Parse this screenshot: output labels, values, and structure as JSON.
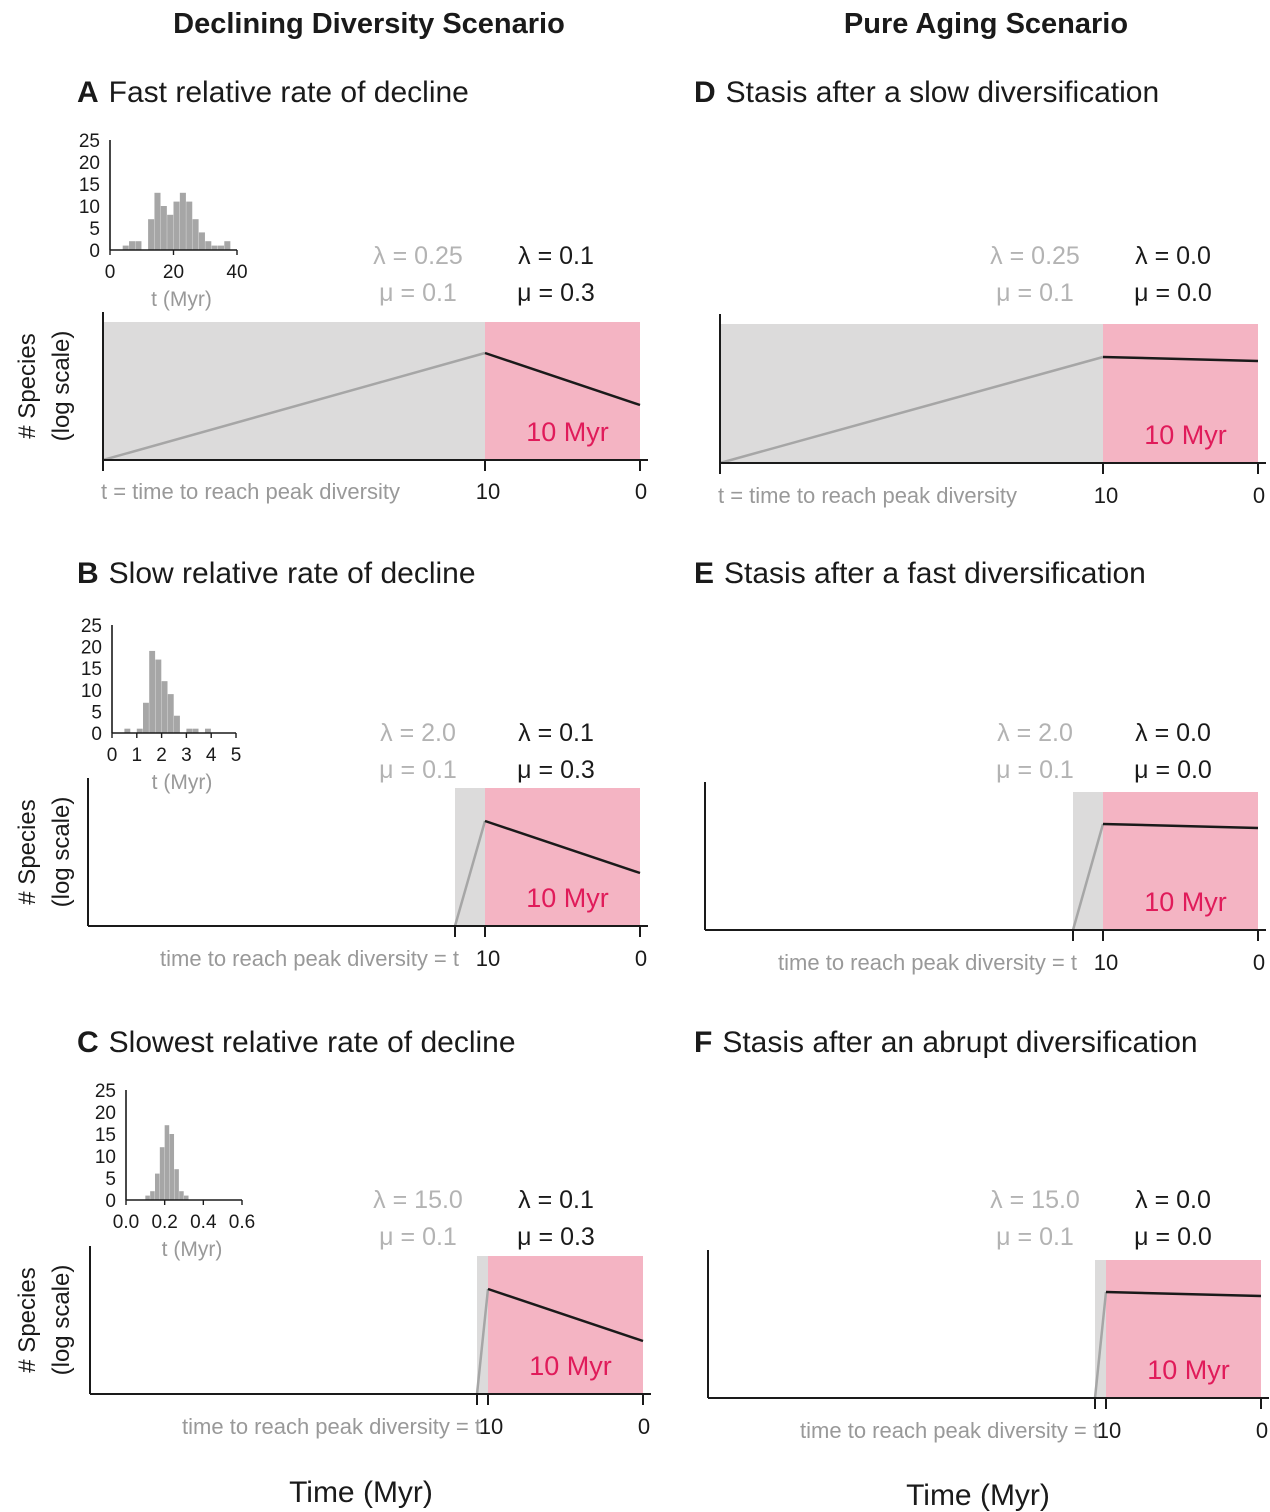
{
  "columns": {
    "left_title": "Declining Diversity Scenario",
    "right_title": "Pure Aging Scenario"
  },
  "colors": {
    "grey_region": "#dcdbdb",
    "pink_region": "#f4b4c3",
    "grey_line": "#a6a6a6",
    "black_line": "#1a1a1a",
    "myr_label": "#e01b5a",
    "hist_bars": "#a6a6a6"
  },
  "y_axis_label": {
    "line1": "# Species",
    "line2": "(log scale)"
  },
  "x_axis_label": "Time (Myr)",
  "pink_label": "10 Myr",
  "tick_10": "10",
  "tick_0": "0",
  "panels": [
    {
      "letter": "A",
      "title": "Fast relative rate of decline",
      "grey_params": {
        "lambda": "λ = 0.25",
        "mu": "μ = 0.1"
      },
      "black_params": {
        "lambda": "λ = 0.1",
        "mu": "μ = 0.3"
      },
      "time_label": "t = time to reach peak diversity",
      "after_peak": "decline",
      "histogram": {
        "y_ticks": [
          "25",
          "20",
          "15",
          "10",
          "5",
          "0"
        ],
        "x_ticks": [
          "0",
          "20",
          "40"
        ],
        "xlabel": "t (Myr)",
        "xlim": [
          0,
          50
        ],
        "ylim": [
          0,
          25
        ],
        "bin_width": 2.5,
        "x_start": 2.5,
        "counts": [
          0,
          1,
          2,
          2,
          0,
          7,
          13,
          10,
          8,
          11,
          13,
          11,
          7,
          4,
          2,
          1,
          1,
          2
        ]
      }
    },
    {
      "letter": "B",
      "title": "Slow relative rate of decline",
      "grey_params": {
        "lambda": "λ = 2.0",
        "mu": "μ = 0.1"
      },
      "black_params": {
        "lambda": "λ = 0.1",
        "mu": "μ = 0.3"
      },
      "time_label": "time to reach peak diversity = t",
      "after_peak": "decline",
      "histogram": {
        "y_ticks": [
          "25",
          "20",
          "15",
          "10",
          "5",
          "0"
        ],
        "x_ticks": [
          "0",
          "1",
          "2",
          "3",
          "4",
          "5"
        ],
        "xlabel": "t (Myr)",
        "xlim": [
          0,
          5
        ],
        "ylim": [
          0,
          25
        ],
        "bin_width": 0.25,
        "x_start": 0.5,
        "counts": [
          1,
          0,
          1,
          7,
          19,
          17,
          12,
          9,
          4,
          0,
          1,
          1,
          0,
          1
        ]
      }
    },
    {
      "letter": "C",
      "title": "Slowest relative rate of decline",
      "grey_params": {
        "lambda": "λ = 15.0",
        "mu": "μ = 0.1"
      },
      "black_params": {
        "lambda": "λ = 0.1",
        "mu": "μ = 0.3"
      },
      "time_label": "time to reach peak diversity = t",
      "after_peak": "decline",
      "histogram": {
        "y_ticks": [
          "25",
          "20",
          "15",
          "10",
          "5",
          "0"
        ],
        "x_ticks": [
          "0.0",
          "0.2",
          "0.4",
          "0.6"
        ],
        "xlabel": "t (Myr)",
        "xlim": [
          0,
          0.6
        ],
        "ylim": [
          0,
          25
        ],
        "bin_width": 0.025,
        "x_start": 0.1,
        "counts": [
          1,
          2,
          6,
          12,
          17,
          15,
          7,
          2,
          1
        ]
      }
    },
    {
      "letter": "D",
      "title": "Stasis after a slow diversification",
      "grey_params": {
        "lambda": "λ = 0.25",
        "mu": "μ = 0.1"
      },
      "black_params": {
        "lambda": "λ = 0.0",
        "mu": "μ = 0.0"
      },
      "time_label": "t = time to reach peak diversity",
      "after_peak": "flat"
    },
    {
      "letter": "E",
      "title": "Stasis after a fast diversification",
      "grey_params": {
        "lambda": "λ = 2.0",
        "mu": "μ = 0.1"
      },
      "black_params": {
        "lambda": "λ = 0.0",
        "mu": "μ = 0.0"
      },
      "time_label": "time to reach peak diversity = t",
      "after_peak": "flat"
    },
    {
      "letter": "F",
      "title": "Stasis after an abrupt diversification",
      "grey_params": {
        "lambda": "λ = 15.0",
        "mu": "μ = 0.1"
      },
      "black_params": {
        "lambda": "λ = 0.0",
        "mu": "μ = 0.0"
      },
      "time_label": "time to reach peak diversity = t",
      "after_peak": "flat"
    }
  ]
}
